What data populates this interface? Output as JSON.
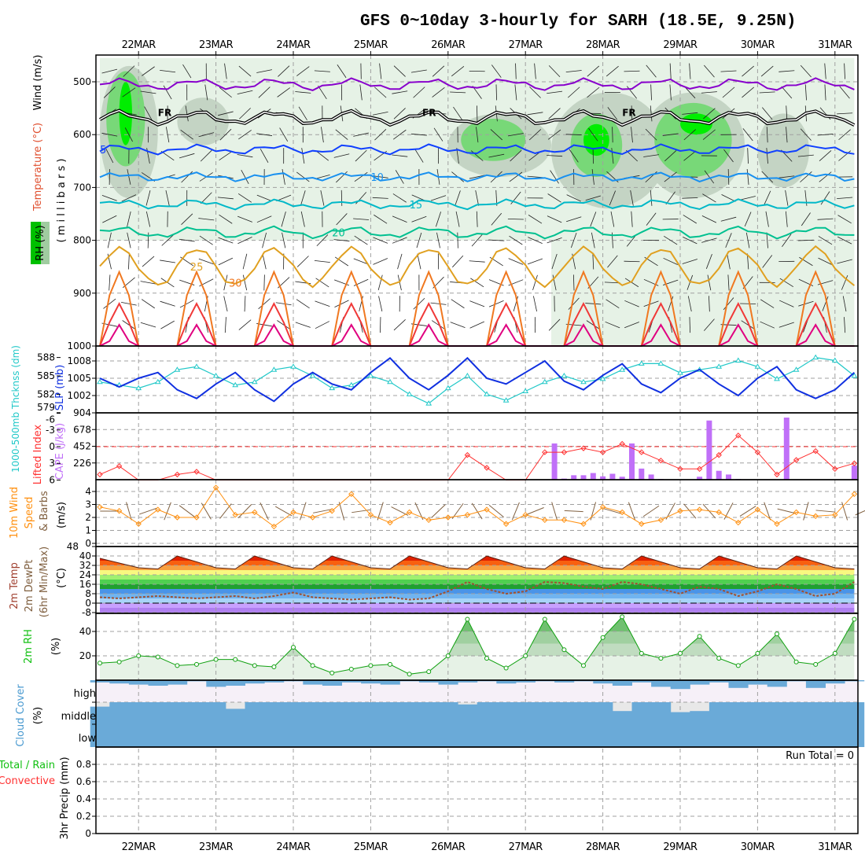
{
  "title": "GFS 0~10day 3-hourly for SARH (18.5E, 9.25N)",
  "days": [
    "22MAR",
    "23MAR",
    "24MAR",
    "25MAR",
    "26MAR",
    "27MAR",
    "28MAR",
    "29MAR",
    "30MAR",
    "31MAR"
  ],
  "labels": {
    "p1_wind": "Wind (m/s)",
    "p1_temp": "Temperature (°C)",
    "p1_rh": "RH (%)",
    "p1_axis": "( m i l l i b a r s )",
    "p2_thick": "1000-500mb Thcknss (dm)",
    "p2_slp": "SLP (mb)",
    "p3_li": "Lifted Index",
    "p3_cape": "CAPE (J/kg)",
    "p4_a": "10m Wind",
    "p4_b": "Speed",
    "p4_c": "& Barbs",
    "p4_unit": "(m/s)",
    "p5_a": "2m Temp",
    "p5_b": "2m DewPt",
    "p5_c": "(6hr Min/Max)",
    "p5_unit": "(°C)",
    "p6_a": "2m RH",
    "p6_unit": "(%)",
    "p7_a": "Cloud Cover",
    "p7_unit": "(%)",
    "p7_high": "high",
    "p7_middle": "middle",
    "p7_low": "low",
    "p8_a": "Total / Rain",
    "p8_b": "Convective",
    "p8_axis": "3hr Precip (mm)",
    "run_total": "Run Total = 0",
    "freezing": "FR"
  },
  "chart_data": [
    {
      "type": "contour",
      "name": "upper-air",
      "ylabel": "millibars",
      "ylim": [
        450,
        1000
      ],
      "yticks": [
        "500",
        "600",
        "700",
        "800",
        "900",
        "1000"
      ],
      "rh_colors": [
        "#e6f2e6",
        "#c4d4c4",
        "#78d878",
        "#00ee00"
      ],
      "rh_regions": [
        {
          "h0": 0,
          "h1": 234,
          "p0": 455,
          "p1": 800,
          "level": 0
        },
        {
          "h0": 140,
          "h1": 234,
          "p0": 800,
          "p1": 1000,
          "level": 0
        },
        {
          "h0": 0,
          "h1": 18,
          "p0": 470,
          "p1": 720,
          "level": 1
        },
        {
          "h0": 2,
          "h1": 14,
          "p0": 480,
          "p1": 660,
          "level": 2
        },
        {
          "h0": 6,
          "h1": 10,
          "p0": 500,
          "p1": 620,
          "level": 3
        },
        {
          "h0": 24,
          "h1": 40,
          "p0": 530,
          "p1": 620,
          "level": 1
        },
        {
          "h0": 108,
          "h1": 140,
          "p0": 560,
          "p1": 680,
          "level": 1
        },
        {
          "h0": 112,
          "h1": 132,
          "p0": 570,
          "p1": 650,
          "level": 2
        },
        {
          "h0": 140,
          "h1": 176,
          "p0": 520,
          "p1": 740,
          "level": 1
        },
        {
          "h0": 146,
          "h1": 162,
          "p0": 560,
          "p1": 680,
          "level": 2
        },
        {
          "h0": 150,
          "h1": 158,
          "p0": 580,
          "p1": 640,
          "level": 3
        },
        {
          "h0": 168,
          "h1": 200,
          "p0": 520,
          "p1": 720,
          "level": 1
        },
        {
          "h0": 172,
          "h1": 196,
          "p0": 540,
          "p1": 680,
          "level": 2
        },
        {
          "h0": 180,
          "h1": 190,
          "p0": 560,
          "p1": 600,
          "level": 3
        },
        {
          "h0": 204,
          "h1": 220,
          "p0": 560,
          "p1": 700,
          "level": 1
        }
      ],
      "isotherms": [
        {
          "temp": "-5",
          "p": 505,
          "amp": 8,
          "color": "#8800cc"
        },
        {
          "temp": "0",
          "p": 568,
          "amp": 10,
          "color": "#000000"
        },
        {
          "temp": "5",
          "p": 628,
          "amp": 6,
          "color": "#1040ff"
        },
        {
          "temp": "10",
          "p": 680,
          "amp": 5,
          "color": "#1890f0"
        },
        {
          "temp": "15",
          "p": 732,
          "amp": 6,
          "color": "#00b8c8"
        },
        {
          "temp": "20",
          "p": 785,
          "amp": 8,
          "color": "#00c090"
        },
        {
          "temp": "25",
          "p": 850,
          "amp": 35,
          "color": "#e0a020"
        },
        {
          "temp": "30",
          "p": 1010,
          "amp": 150,
          "color": "#f07820"
        },
        {
          "temp": "35",
          "p": 1040,
          "amp": 120,
          "color": "#f03838"
        },
        {
          "temp": "40",
          "p": 1065,
          "amp": 105,
          "color": "#e0007f"
        }
      ]
    },
    {
      "type": "line",
      "name": "thickness-slp",
      "hours_step": 6,
      "thickness_ticks": [
        "588",
        "585",
        "582",
        "579"
      ],
      "slp_ticks": [
        "1008",
        "1005",
        "1002"
      ],
      "thickness_dm": [
        584,
        583.5,
        583,
        584,
        586,
        586.5,
        585,
        583.5,
        584,
        586,
        586.5,
        585,
        583,
        583.5,
        585,
        584,
        582,
        580.5,
        583,
        585,
        582,
        581,
        582.5,
        584,
        585,
        584,
        584.5,
        586,
        587,
        587,
        585.5,
        586,
        586.5,
        587.5,
        586.5,
        584.5,
        586,
        588,
        587.5,
        585
      ],
      "slp_mb": [
        1005,
        1003.5,
        1005,
        1006,
        1003,
        1001.5,
        1004,
        1006,
        1003,
        1001,
        1004,
        1006,
        1004,
        1003,
        1006,
        1008.5,
        1005,
        1003,
        1005.5,
        1008.5,
        1005,
        1004,
        1006,
        1008,
        1004.5,
        1003,
        1005.5,
        1007.5,
        1004,
        1002.5,
        1005,
        1006.5,
        1004,
        1002,
        1005,
        1007,
        1003,
        1001.5,
        1003,
        1006
      ],
      "thickness_color": "#20c8c8",
      "slp_color": "#1030e0"
    },
    {
      "type": "line+bar",
      "name": "lifted-index-cape",
      "li_ticks": [
        "-6",
        "-3",
        "0",
        "3",
        "6"
      ],
      "cape_ticks": [
        "904",
        "678",
        "452",
        "226"
      ],
      "lifted_index": [
        5,
        3.5,
        6,
        6,
        5,
        4.5,
        6,
        6,
        6,
        6,
        6,
        6,
        6,
        6,
        6,
        6,
        6,
        6,
        6,
        1.5,
        3.8,
        6,
        6,
        1,
        1,
        0.3,
        1,
        -0.5,
        1,
        2.5,
        4,
        4,
        1.5,
        -2,
        1,
        5,
        2.4,
        0.8,
        4,
        3
      ],
      "cape": [
        [
          141,
          490
        ],
        [
          144,
          15
        ],
        [
          147,
          60
        ],
        [
          150,
          60
        ],
        [
          153,
          90
        ],
        [
          156,
          45
        ],
        [
          159,
          80
        ],
        [
          162,
          40
        ],
        [
          165,
          490
        ],
        [
          168,
          150
        ],
        [
          171,
          70
        ],
        [
          174,
          10
        ],
        [
          183,
          5
        ],
        [
          186,
          40
        ],
        [
          189,
          800
        ],
        [
          192,
          120
        ],
        [
          195,
          70
        ],
        [
          198,
          10
        ],
        [
          213,
          840
        ],
        [
          234,
          190
        ]
      ],
      "li_color": "#ff3030",
      "cape_color": "#c070f8"
    },
    {
      "type": "line",
      "name": "10m-wind",
      "ticks": [
        "4",
        "3",
        "2",
        "1",
        "0"
      ],
      "speed_ms": [
        2.8,
        2.5,
        1.5,
        2.6,
        2,
        2,
        4.3,
        2.2,
        2.4,
        1.3,
        2.4,
        2,
        2.5,
        3.8,
        2.2,
        1.6,
        2.4,
        1.8,
        2,
        2.2,
        2.6,
        1.5,
        2.2,
        1.8,
        1.8,
        1.5,
        2.8,
        2.4,
        1.5,
        1.8,
        2.5,
        2.6,
        2.4,
        1.6,
        2.6,
        1.5,
        2.4,
        2.1,
        2.2,
        3.8
      ],
      "color": "#ff9010"
    },
    {
      "type": "area",
      "name": "2m-temp-dewpt",
      "ticks": [
        "48",
        "40",
        "32",
        "24",
        "16",
        "8",
        "0",
        "-8"
      ],
      "temp_c": [
        38,
        34,
        30,
        29,
        40,
        35,
        30,
        29,
        40,
        35,
        30,
        29,
        40,
        35,
        30,
        29,
        40,
        35,
        30,
        29,
        40,
        35,
        30,
        29,
        40,
        35,
        30,
        29,
        40,
        35,
        30,
        29,
        40,
        35,
        30,
        29,
        40,
        35,
        30,
        29
      ],
      "dewpt_c": [
        5,
        4,
        5,
        6,
        5,
        4,
        5,
        6,
        4,
        6,
        9,
        5,
        4,
        3,
        4,
        5,
        3,
        4,
        10,
        18,
        12,
        8,
        10,
        18,
        17,
        14,
        12,
        18,
        16,
        12,
        8,
        14,
        12,
        6,
        10,
        16,
        12,
        6,
        8,
        18
      ],
      "bands": [
        {
          "from": -8,
          "to": -4,
          "color": "#b080f0"
        },
        {
          "from": -4,
          "to": 0,
          "color": "#c8a0ff"
        },
        {
          "from": 0,
          "to": 4,
          "color": "#a8d4f8"
        },
        {
          "from": 4,
          "to": 8,
          "color": "#70b4f0"
        },
        {
          "from": 8,
          "to": 12,
          "color": "#4a94e8"
        },
        {
          "from": 12,
          "to": 16,
          "color": "#20a030"
        },
        {
          "from": 16,
          "to": 20,
          "color": "#50d050"
        },
        {
          "from": 20,
          "to": 24,
          "color": "#a0f070"
        },
        {
          "from": 24,
          "to": 28,
          "color": "#f8f880"
        },
        {
          "from": 28,
          "to": 32,
          "color": "#f8a040"
        },
        {
          "from": 32,
          "to": 36,
          "color": "#f86010"
        },
        {
          "from": 36,
          "to": 40,
          "color": "#e02000"
        },
        {
          "from": 40,
          "to": 48,
          "color": "#902018"
        }
      ]
    },
    {
      "type": "area",
      "name": "2m-rh",
      "ticks": [
        "40",
        "20"
      ],
      "rh_pct": [
        14,
        15,
        20,
        19,
        12,
        13,
        17,
        17,
        12,
        11,
        27,
        12,
        6,
        9,
        12,
        13,
        5,
        7,
        20,
        50,
        18,
        10,
        20,
        50,
        25,
        12,
        35,
        52,
        22,
        18,
        22,
        36,
        18,
        12,
        22,
        38,
        15,
        13,
        22,
        50
      ],
      "color": "#10a010"
    },
    {
      "type": "bar",
      "name": "cloud-cover",
      "high_pct": [
        10,
        15,
        20,
        25,
        20,
        5,
        30,
        25,
        15,
        10,
        5,
        20,
        25,
        10,
        15,
        20,
        5,
        10,
        20,
        10,
        5,
        15,
        10,
        5,
        10,
        5,
        15,
        25,
        10,
        30,
        40,
        20,
        10,
        35,
        20,
        30,
        5,
        35,
        15,
        5
      ],
      "middle_pct": [
        80,
        100,
        100,
        100,
        100,
        100,
        100,
        70,
        100,
        100,
        100,
        100,
        100,
        100,
        100,
        100,
        100,
        100,
        100,
        90,
        100,
        100,
        100,
        100,
        100,
        100,
        100,
        60,
        100,
        100,
        55,
        60,
        100,
        100,
        100,
        100,
        100,
        100,
        100,
        100
      ],
      "low_pct": [
        100,
        100,
        100,
        100,
        100,
        100,
        100,
        100,
        100,
        100,
        100,
        100,
        100,
        100,
        100,
        100,
        100,
        100,
        100,
        100,
        100,
        100,
        100,
        100,
        100,
        100,
        100,
        100,
        100,
        100,
        100,
        100,
        100,
        100,
        100,
        100,
        100,
        100,
        100,
        100
      ],
      "color": "#6aaad8"
    },
    {
      "type": "bar",
      "name": "3hr-precip",
      "ticks": [
        "0.8",
        "0.6",
        "0.4",
        "0.2",
        "0"
      ],
      "ylim": [
        0,
        1
      ],
      "total_mm": [
        0,
        0,
        0,
        0,
        0,
        0,
        0,
        0,
        0,
        0,
        0,
        0,
        0,
        0,
        0,
        0,
        0,
        0,
        0,
        0,
        0,
        0,
        0,
        0,
        0,
        0,
        0,
        0,
        0,
        0,
        0,
        0,
        0,
        0,
        0,
        0,
        0,
        0,
        0,
        0
      ],
      "convective_mm": [
        0,
        0,
        0,
        0,
        0,
        0,
        0,
        0,
        0,
        0,
        0,
        0,
        0,
        0,
        0,
        0,
        0,
        0,
        0,
        0,
        0,
        0,
        0,
        0,
        0,
        0,
        0,
        0,
        0,
        0,
        0,
        0,
        0,
        0,
        0,
        0,
        0,
        0,
        0,
        0
      ]
    }
  ]
}
